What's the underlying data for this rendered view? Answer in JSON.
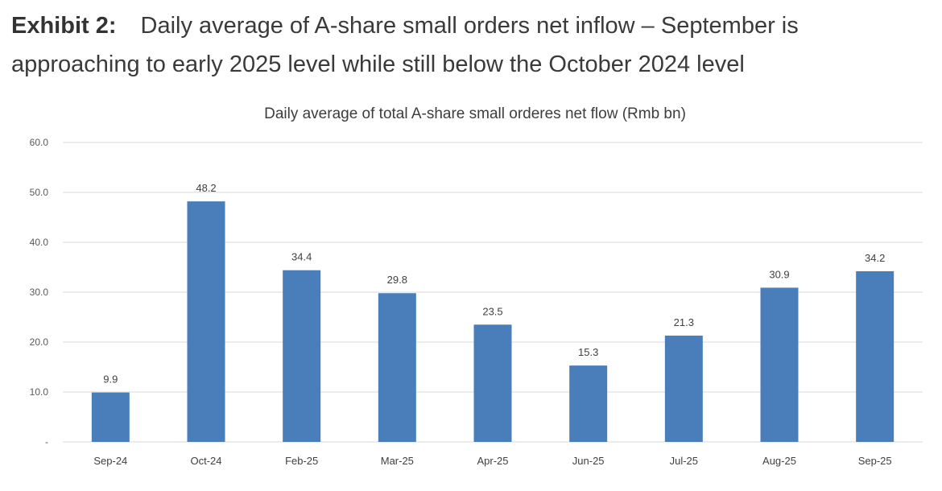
{
  "exhibit": {
    "label": "Exhibit 2:",
    "title": "Daily average of A-share small orders net inflow – September is approaching to early 2025 level while still below the October 2024 level"
  },
  "colors": {
    "bar": "#4a7ebb",
    "grid": "#d9d9d9",
    "text": "#404040"
  },
  "chart_data": {
    "type": "bar",
    "title": "Daily average of total A-share small orderes net flow  (Rmb bn)",
    "xlabel": "",
    "ylabel": "",
    "ylim": [
      0,
      60
    ],
    "yticks": [
      0,
      10,
      20,
      30,
      40,
      50,
      60
    ],
    "ytick_labels": [
      "-",
      "10.0",
      "20.0",
      "30.0",
      "40.0",
      "50.0",
      "60.0"
    ],
    "grid": true,
    "legend": "none",
    "categories": [
      "Sep-24",
      "Oct-24",
      "Feb-25",
      "Mar-25",
      "Apr-25",
      "Jun-25",
      "Jul-25",
      "Aug-25",
      "Sep-25"
    ],
    "values": [
      9.9,
      48.2,
      34.4,
      29.8,
      23.5,
      15.3,
      21.3,
      30.9,
      34.2
    ],
    "data_labels": [
      "9.9",
      "48.2",
      "34.4",
      "29.8",
      "23.5",
      "15.3",
      "21.3",
      "30.9",
      "34.2"
    ]
  }
}
